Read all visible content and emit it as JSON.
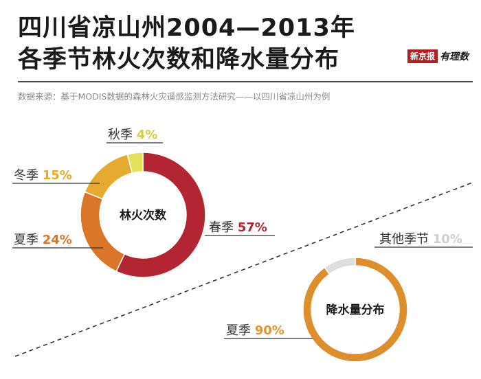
{
  "header": {
    "title_line1": "四川省凉山州2004—2013年",
    "title_line2": "各季节林火次数和降水量分布",
    "source": "数据来源：基于MODIS数据的森林火灾遥感监测方法研究——以四川省凉山州为例",
    "brand_box": "新京报",
    "brand_script": "有理数"
  },
  "chart_data": [
    {
      "type": "pie",
      "title": "林火次数",
      "labels": [
        "春季",
        "夏季",
        "冬季",
        "秋季"
      ],
      "values": [
        57,
        24,
        15,
        4
      ],
      "value_labels": [
        "57%",
        "24%",
        "15%",
        "4%"
      ],
      "colors": [
        "#b32532",
        "#d9762a",
        "#e8a930",
        "#e3e25a"
      ],
      "label_colors": [
        "#b32532",
        "#d9762a",
        "#e8a930",
        "#d4d03e"
      ],
      "donut": true
    },
    {
      "type": "pie",
      "title": "降水量分布",
      "labels": [
        "夏季",
        "其他季节"
      ],
      "values": [
        90,
        10
      ],
      "value_labels": [
        "90%",
        "10%"
      ],
      "colors": [
        "#dd8f2e",
        "#dedede"
      ],
      "label_colors": [
        "#e2962f",
        "#cfcfcf"
      ],
      "donut": true
    }
  ]
}
